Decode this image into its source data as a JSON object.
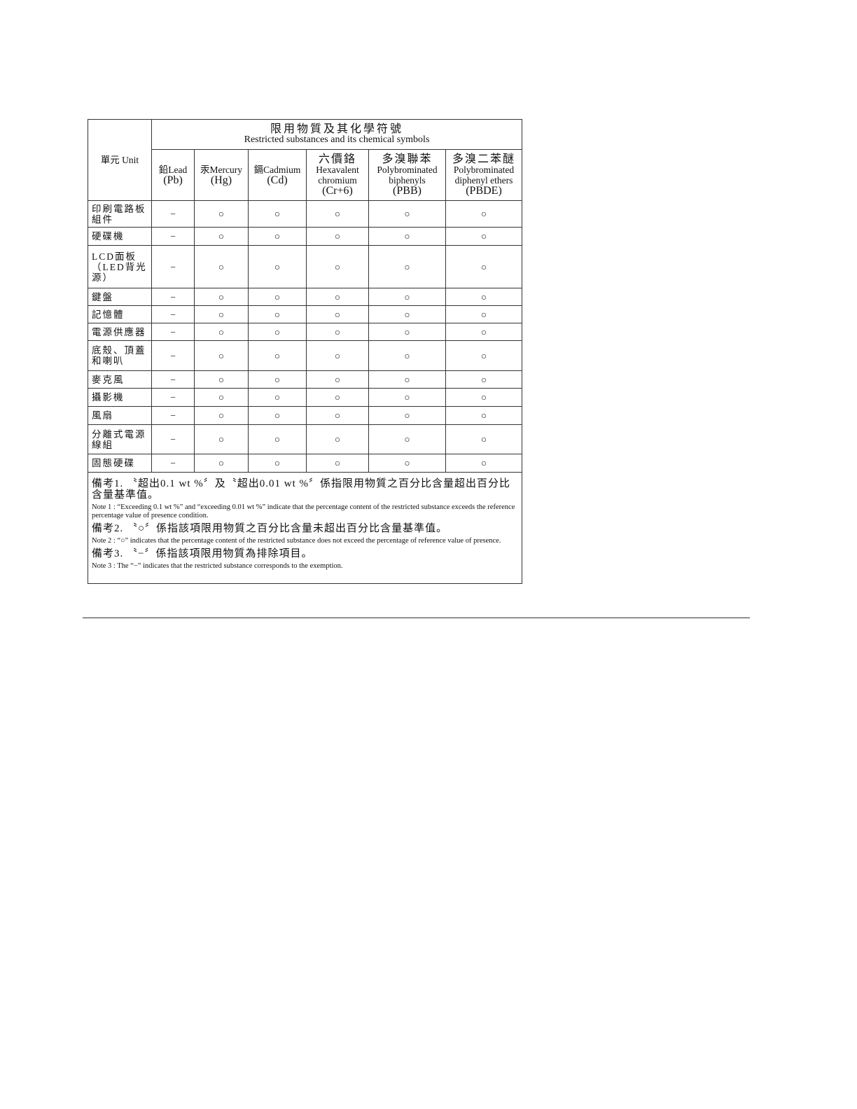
{
  "table": {
    "unit_header": "單元 Unit",
    "group_header_zh": "限用物質及其化學符號",
    "group_header_en": "Restricted substances and its chemical symbols",
    "columns": [
      {
        "l1": "鉛Lead",
        "l2": "(Pb)"
      },
      {
        "l1": "汞Mercury",
        "l2": "(Hg)"
      },
      {
        "l1": "鎘Cadmium",
        "l2": "(Cd)"
      },
      {
        "l1": "六價鉻",
        "l2": "Hexavalent",
        "l3": "chromium",
        "l4": "(Cr+6)"
      },
      {
        "l1": "多溴聯苯",
        "l2": "Polybrominated",
        "l3": "biphenyls",
        "l4": "(PBB)"
      },
      {
        "l1": "多溴二苯醚",
        "l2": "Polybrominated",
        "l3": "diphenyl ethers",
        "l4": "(PBDE)"
      }
    ],
    "rows": [
      {
        "label": "印刷電路板組件",
        "values": [
          "−",
          "○",
          "○",
          "○",
          "○",
          "○"
        ]
      },
      {
        "label": "硬碟機",
        "values": [
          "−",
          "○",
          "○",
          "○",
          "○",
          "○"
        ]
      },
      {
        "label": "LCD面板（LED背光源）",
        "values": [
          "−",
          "○",
          "○",
          "○",
          "○",
          "○"
        ]
      },
      {
        "label": "鍵盤",
        "values": [
          "−",
          "○",
          "○",
          "○",
          "○",
          "○"
        ]
      },
      {
        "label": "記憶體",
        "values": [
          "−",
          "○",
          "○",
          "○",
          "○",
          "○"
        ]
      },
      {
        "label": "電源供應器",
        "values": [
          "−",
          "○",
          "○",
          "○",
          "○",
          "○"
        ]
      },
      {
        "label": "底殼、頂蓋和喇叭",
        "values": [
          "−",
          "○",
          "○",
          "○",
          "○",
          "○"
        ]
      },
      {
        "label": "麥克風",
        "values": [
          "−",
          "○",
          "○",
          "○",
          "○",
          "○"
        ]
      },
      {
        "label": "攝影機",
        "values": [
          "−",
          "○",
          "○",
          "○",
          "○",
          "○"
        ]
      },
      {
        "label": "風扇",
        "values": [
          "−",
          "○",
          "○",
          "○",
          "○",
          "○"
        ]
      },
      {
        "label": "分離式電源線組",
        "values": [
          "−",
          "○",
          "○",
          "○",
          "○",
          "○"
        ]
      },
      {
        "label": "固態硬碟",
        "values": [
          "−",
          "○",
          "○",
          "○",
          "○",
          "○"
        ]
      }
    ]
  },
  "notes": [
    {
      "zh": "備考1. 〝超出0.1 wt %〞及〝超出0.01 wt %〞係指限用物質之百分比含量超出百分比含量基準值。",
      "en": "Note 1 : “Exceeding 0.1 wt %” and “exceeding 0.01 wt %” indicate that the percentage content of the restricted substance exceeds the reference percentage value of presence condition."
    },
    {
      "zh": "備考2. 〝○〞係指該項限用物質之百分比含量未超出百分比含量基準值。",
      "en": "Note 2 : “○” indicates that the percentage content of the restricted substance does not exceed the percentage of reference value of presence."
    },
    {
      "zh": "備考3. 〝−〞係指該項限用物質為排除項目。",
      "en": "Note 3 : The “−” indicates that the restricted substance corresponds to the exemption."
    }
  ]
}
